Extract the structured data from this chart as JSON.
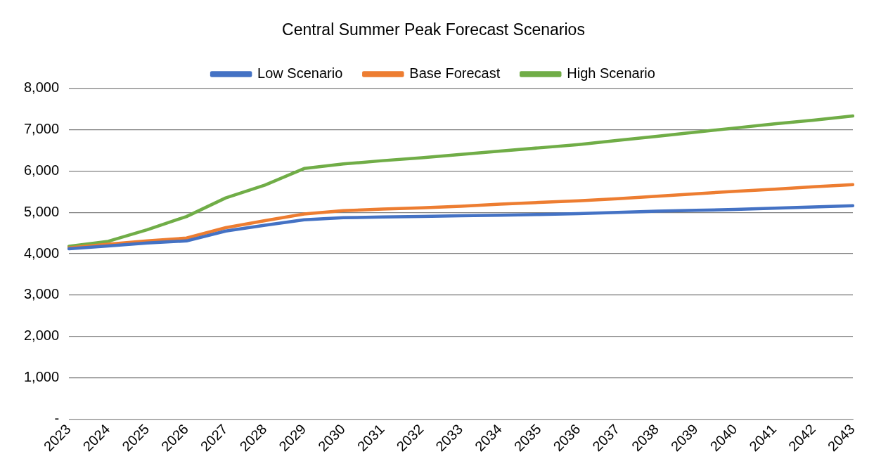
{
  "chart_data": {
    "type": "line",
    "title": "Central Summer Peak Forecast Scenarios",
    "categories": [
      "2023",
      "2024",
      "2025",
      "2026",
      "2027",
      "2028",
      "2029",
      "2030",
      "2031",
      "2032",
      "2033",
      "2034",
      "2035",
      "2036",
      "2037",
      "2038",
      "2039",
      "2040",
      "2041",
      "2042",
      "2043"
    ],
    "series": [
      {
        "name": "Low Scenario",
        "color": "#4472c4",
        "values": [
          4120,
          4190,
          4260,
          4310,
          4550,
          4690,
          4820,
          4870,
          4890,
          4900,
          4920,
          4930,
          4950,
          4970,
          5000,
          5030,
          5050,
          5070,
          5100,
          5130,
          5160
        ]
      },
      {
        "name": "Base Forecast",
        "color": "#ed7d31",
        "values": [
          4140,
          4230,
          4310,
          4380,
          4630,
          4800,
          4960,
          5040,
          5080,
          5110,
          5150,
          5200,
          5240,
          5280,
          5330,
          5390,
          5450,
          5510,
          5560,
          5620,
          5670
        ]
      },
      {
        "name": "High Scenario",
        "color": "#70ad47",
        "values": [
          4180,
          4300,
          4580,
          4900,
          5350,
          5660,
          6060,
          6170,
          6250,
          6320,
          6400,
          6480,
          6560,
          6640,
          6740,
          6840,
          6940,
          7040,
          7140,
          7230,
          7330
        ]
      }
    ],
    "ylim": [
      0,
      8000
    ],
    "yticks": [
      {
        "value": 0,
        "label": "-"
      },
      {
        "value": 1000,
        "label": "1,000"
      },
      {
        "value": 2000,
        "label": "2,000"
      },
      {
        "value": 3000,
        "label": "3,000"
      },
      {
        "value": 4000,
        "label": "4,000"
      },
      {
        "value": 5000,
        "label": "5,000"
      },
      {
        "value": 6000,
        "label": "6,000"
      },
      {
        "value": 7000,
        "label": "7,000"
      },
      {
        "value": 8000,
        "label": "8,000"
      }
    ],
    "grid": "y",
    "legend": "top",
    "marker": "none",
    "line_style": "solid"
  }
}
